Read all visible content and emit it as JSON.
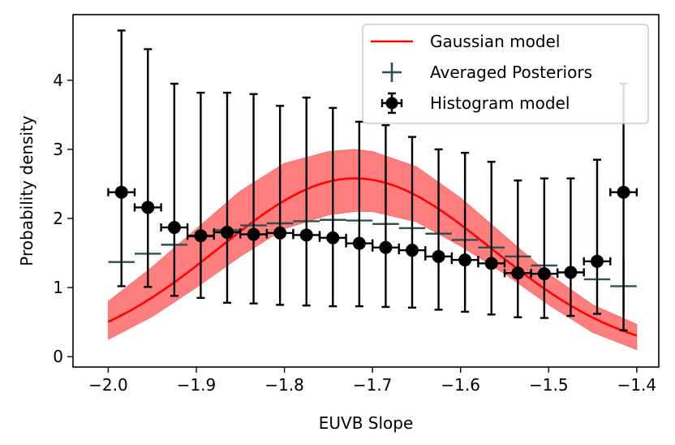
{
  "chart_data": {
    "type": "line",
    "xlabel": "EUVB Slope",
    "ylabel": "Probability density",
    "xlim": [
      -2.04,
      -1.375
    ],
    "ylim": [
      -0.15,
      4.95
    ],
    "grid": false,
    "legend_position": "top-right",
    "x_ticks": [
      {
        "value": -2.0,
        "label": "−2.0"
      },
      {
        "value": -1.9,
        "label": "−1.9"
      },
      {
        "value": -1.8,
        "label": "−1.8"
      },
      {
        "value": -1.7,
        "label": "−1.7"
      },
      {
        "value": -1.6,
        "label": "−1.6"
      },
      {
        "value": -1.5,
        "label": "−1.5"
      },
      {
        "value": -1.4,
        "label": "−1.4"
      }
    ],
    "y_ticks": [
      {
        "value": 0,
        "label": "0"
      },
      {
        "value": 1,
        "label": "1"
      },
      {
        "value": 2,
        "label": "2"
      },
      {
        "value": 3,
        "label": "3"
      },
      {
        "value": 4,
        "label": "4"
      }
    ],
    "legend": [
      {
        "label": "Gaussian model",
        "marker": "line",
        "color": "#ff0000"
      },
      {
        "label": "Averaged Posteriors",
        "marker": "plus",
        "color": "#2f4f4f"
      },
      {
        "label": "Histogram model",
        "marker": "errorbar-dot",
        "color": "#000000"
      }
    ],
    "series": [
      {
        "name": "Gaussian model",
        "kind": "line_with_band",
        "color": "#ff0000",
        "band_color": "#ff0000",
        "band_opacity": 0.5,
        "mean": {
          "mu": -1.72,
          "sigma": 0.155,
          "amplitude": 2.58,
          "offset": 0.0
        },
        "band_upper": {
          "x": [
            -2.0,
            -1.95,
            -1.9,
            -1.85,
            -1.8,
            -1.75,
            -1.72,
            -1.7,
            -1.65,
            -1.6,
            -1.55,
            -1.5,
            -1.45,
            -1.4
          ],
          "y": [
            0.8,
            1.3,
            1.85,
            2.4,
            2.8,
            2.97,
            3.0,
            2.97,
            2.75,
            2.3,
            1.75,
            1.2,
            0.75,
            0.47
          ]
        },
        "band_lower": {
          "x": [
            -2.0,
            -1.95,
            -1.9,
            -1.85,
            -1.8,
            -1.75,
            -1.72,
            -1.7,
            -1.65,
            -1.6,
            -1.55,
            -1.5,
            -1.45,
            -1.4
          ],
          "y": [
            0.25,
            0.58,
            1.0,
            1.45,
            1.85,
            2.05,
            2.1,
            2.1,
            1.95,
            1.6,
            1.2,
            0.75,
            0.35,
            0.1
          ]
        }
      },
      {
        "name": "Averaged Posteriors",
        "kind": "plus_markers",
        "color": "#2f4f4f",
        "x": [
          -1.985,
          -1.955,
          -1.925,
          -1.895,
          -1.865,
          -1.835,
          -1.805,
          -1.775,
          -1.745,
          -1.715,
          -1.685,
          -1.655,
          -1.625,
          -1.595,
          -1.565,
          -1.535,
          -1.505,
          -1.475,
          -1.445,
          -1.415
        ],
        "y": [
          1.37,
          1.49,
          1.62,
          1.74,
          1.83,
          1.9,
          1.93,
          1.96,
          1.98,
          1.97,
          1.92,
          1.86,
          1.78,
          1.69,
          1.58,
          1.45,
          1.32,
          1.22,
          1.12,
          1.02
        ],
        "x_halfwidth": 0.015,
        "yerr_last": [
          0.42,
          0.42
        ]
      },
      {
        "name": "Histogram model",
        "kind": "errorbar",
        "color": "#000000",
        "x": [
          -1.985,
          -1.955,
          -1.925,
          -1.895,
          -1.865,
          -1.835,
          -1.805,
          -1.775,
          -1.745,
          -1.715,
          -1.685,
          -1.655,
          -1.625,
          -1.595,
          -1.565,
          -1.535,
          -1.505,
          -1.475,
          -1.445,
          -1.415
        ],
        "y": [
          2.38,
          2.16,
          1.87,
          1.75,
          1.8,
          1.77,
          1.79,
          1.76,
          1.72,
          1.64,
          1.58,
          1.54,
          1.45,
          1.4,
          1.35,
          1.21,
          1.2,
          1.22,
          1.38,
          2.38
        ],
        "y_low": [
          1.02,
          1.01,
          0.88,
          0.85,
          0.78,
          0.77,
          0.75,
          0.74,
          0.73,
          0.73,
          0.72,
          0.71,
          0.68,
          0.65,
          0.61,
          0.57,
          0.56,
          0.59,
          0.62,
          0.38
        ],
        "y_high": [
          4.72,
          4.45,
          3.95,
          3.82,
          3.82,
          3.8,
          3.63,
          3.75,
          3.6,
          3.4,
          3.35,
          3.18,
          3.0,
          2.95,
          2.82,
          2.55,
          2.58,
          2.58,
          2.85,
          3.95
        ],
        "x_halfwidth": 0.015
      }
    ]
  }
}
